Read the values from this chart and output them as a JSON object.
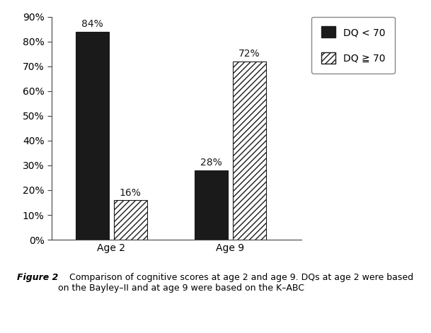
{
  "groups": [
    "Age 2",
    "Age 9"
  ],
  "dq_lt70": [
    84,
    28
  ],
  "dq_gte70": [
    16,
    72
  ],
  "bar_color_lt70": "#1a1a1a",
  "bar_hatch_gte70": "////",
  "bar_face_gte70": "#ffffff",
  "bar_edge_gte70": "#1a1a1a",
  "bar_width": 0.28,
  "ylim": [
    0,
    90
  ],
  "yticks": [
    0,
    10,
    20,
    30,
    40,
    50,
    60,
    70,
    80,
    90
  ],
  "ytick_labels": [
    "0%",
    "10%",
    "20%",
    "30%",
    "40%",
    "50%",
    "60%",
    "70%",
    "80%",
    "90%"
  ],
  "legend_lt70": "DQ < 70",
  "legend_gte70": "DQ ≧ 70",
  "caption_bold": "Figure 2",
  "caption_normal": "    Comparison of cognitive scores at age 2 and age 9. DQs at age 2 were based\non the Bayley–II and at age 9 were based on the K–ABC",
  "label_fontsize": 10,
  "tick_fontsize": 10,
  "legend_fontsize": 10,
  "caption_fontsize": 9
}
